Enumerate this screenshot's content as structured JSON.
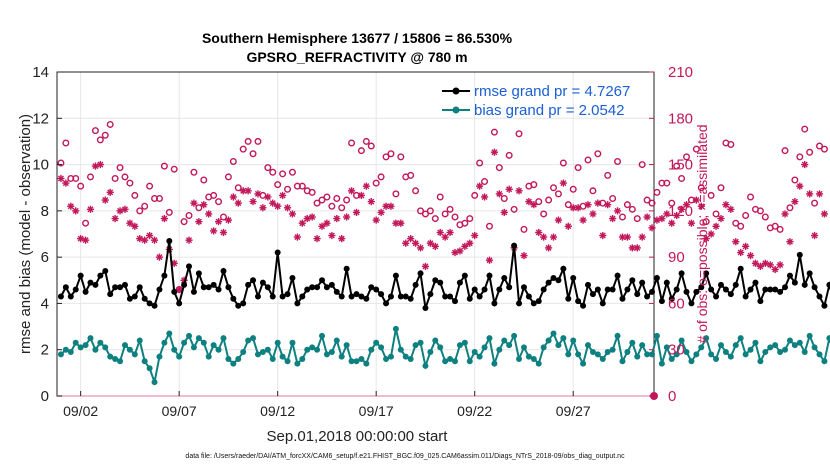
{
  "chart_data": {
    "type": "scatter",
    "title_line1": "Southern Hemisphere 13677 / 15806 = 86.530%",
    "title_line2": "GPSRO_REFRACTIVITY @ 780 m",
    "ylabel_left": "rmse and bias (model - observation)",
    "ylabel_right": "# of obs: o=possible; ×=assimilated",
    "xlabel": "Sep.01,2018 00:00:00 start",
    "footnote": "data file: /Users/raeder/DAI/ATM_forcXX/CAM6_setup/f.e21.FHIST_BGC.f09_025.CAM6assim.011/Diags_NTrS_2018-09/obs_diag_output.nc",
    "ylim_left": [
      0,
      14
    ],
    "ylim_right": [
      0,
      210
    ],
    "xlim": [
      0.8,
      31.1
    ],
    "yticks_left": [
      "0",
      "2",
      "4",
      "6",
      "8",
      "10",
      "12",
      "14"
    ],
    "yticks_right": [
      "0",
      "30",
      "60",
      "90",
      "120",
      "150",
      "180",
      "210"
    ],
    "xticks": [
      {
        "day": 2,
        "label": "09/02"
      },
      {
        "day": 7,
        "label": "09/07"
      },
      {
        "day": 12,
        "label": "09/12"
      },
      {
        "day": 17,
        "label": "09/17"
      },
      {
        "day": 22,
        "label": "09/22"
      },
      {
        "day": 27,
        "label": "09/27"
      }
    ],
    "legend": [
      {
        "label": "rmse grand pr = 4.7267",
        "color": "#000000"
      },
      {
        "label": "bias grand pr = 2.0542",
        "color": "#0f8080"
      }
    ],
    "colors": {
      "rmse": "#000000",
      "bias": "#0f8080",
      "obs": "#c2185b",
      "zero_line": "#e8a6bd"
    },
    "x_step_days": 0.25,
    "x_start_day": 1.0,
    "series": [
      {
        "name": "rmse",
        "axis": "left",
        "values": [
          4.3,
          4.7,
          4.3,
          4.6,
          5.2,
          4.5,
          4.9,
          4.8,
          5.2,
          5.4,
          4.4,
          4.7,
          4.7,
          4.8,
          4.2,
          4.3,
          4.7,
          4.2,
          4.0,
          3.9,
          4.6,
          5.2,
          6.7,
          4.5,
          4.0,
          4.8,
          5.6,
          4.5,
          5.3,
          4.7,
          4.7,
          4.8,
          4.6,
          5.4,
          4.7,
          4.2,
          3.9,
          4.0,
          4.8,
          5.0,
          4.3,
          4.9,
          4.7,
          4.3,
          6.2,
          4.3,
          4.4,
          5.1,
          4.0,
          4.3,
          4.6,
          4.7,
          4.7,
          5.0,
          4.7,
          4.8,
          4.5,
          4.3,
          5.5,
          4.3,
          4.4,
          4.3,
          4.2,
          4.7,
          4.6,
          4.4,
          4.0,
          4.3,
          5.2,
          4.3,
          4.3,
          4.2,
          4.8,
          5.3,
          3.8,
          4.4,
          5.0,
          4.9,
          4.3,
          4.3,
          4.1,
          4.9,
          5.2,
          4.2,
          4.6,
          4.3,
          4.6,
          5.2,
          4.0,
          4.6,
          5.1,
          4.7,
          6.5,
          4.0,
          4.7,
          4.3,
          4.0,
          4.1,
          4.6,
          4.9,
          5.1,
          5.0,
          5.5,
          4.2,
          5.1,
          4.1,
          3.9,
          4.8,
          4.4,
          4.6,
          4.0,
          4.6,
          4.6,
          5.2,
          4.2,
          4.6,
          5.0,
          4.4,
          4.9,
          4.3,
          4.5,
          5.1,
          4.1,
          4.9,
          4.2,
          4.6,
          5.3,
          4.5,
          4.0,
          4.5,
          4.7,
          5.3,
          4.6,
          4.3,
          4.8,
          4.6,
          4.4,
          4.8,
          5.5,
          4.3,
          4.6,
          4.9,
          4.1,
          4.6,
          4.6,
          4.6,
          4.5,
          4.7,
          5.2,
          4.9,
          6.1,
          4.8,
          5.3,
          4.7,
          4.3,
          3.9,
          4.8,
          4.1
        ]
      },
      {
        "name": "bias",
        "axis": "left",
        "values": [
          1.8,
          2.0,
          1.9,
          2.3,
          2.1,
          2.2,
          2.5,
          2.0,
          2.3,
          2.1,
          1.7,
          1.6,
          1.5,
          2.2,
          2.0,
          1.8,
          2.4,
          1.5,
          1.2,
          0.6,
          1.7,
          2.3,
          2.7,
          2.0,
          1.7,
          2.3,
          2.6,
          2.1,
          2.5,
          2.3,
          1.7,
          2.2,
          2.0,
          2.5,
          1.6,
          1.4,
          1.6,
          1.9,
          2.4,
          2.5,
          1.8,
          1.9,
          2.0,
          1.6,
          2.3,
          1.7,
          1.5,
          2.3,
          1.4,
          1.6,
          2.0,
          2.1,
          2.0,
          2.6,
          1.8,
          1.9,
          2.4,
          1.7,
          2.2,
          1.5,
          1.5,
          1.6,
          1.4,
          2.0,
          2.3,
          2.1,
          1.6,
          1.7,
          2.9,
          2.0,
          1.7,
          1.6,
          2.2,
          2.3,
          1.3,
          1.9,
          2.4,
          2.1,
          1.5,
          1.6,
          1.5,
          2.2,
          2.3,
          1.5,
          1.9,
          1.7,
          2.1,
          2.5,
          1.4,
          2.0,
          2.4,
          2.2,
          2.6,
          1.6,
          2.1,
          1.7,
          1.6,
          1.4,
          2.1,
          2.4,
          2.7,
          2.2,
          2.5,
          1.8,
          2.4,
          1.8,
          1.4,
          2.2,
          1.9,
          1.8,
          1.6,
          1.9,
          2.0,
          2.6,
          1.5,
          1.9,
          2.3,
          1.7,
          2.2,
          1.8,
          1.8,
          2.6,
          1.4,
          2.1,
          1.6,
          1.8,
          2.4,
          1.9,
          1.5,
          1.8,
          2.1,
          2.5,
          1.8,
          1.6,
          2.2,
          1.9,
          1.7,
          2.2,
          2.5,
          1.8,
          2.0,
          2.3,
          1.5,
          1.9,
          2.1,
          2.2,
          1.9,
          2.0,
          2.4,
          2.2,
          2.3,
          1.9,
          2.6,
          2.1,
          1.8,
          1.5,
          2.5,
          1.8
        ]
      },
      {
        "name": "possible",
        "axis": "right",
        "marker": "o",
        "values": [
          151,
          164,
          141,
          141,
          136,
          112,
          142,
          172,
          166,
          169,
          176,
          141,
          148,
          142,
          138,
          130,
          120,
          123,
          136,
          128,
          128,
          149,
          119,
          147,
          69,
          113,
          117,
          145,
          122,
          140,
          129,
          130,
          126,
          116,
          142,
          152,
          135,
          160,
          165,
          157,
          165,
          130,
          148,
          145,
          137,
          144,
          134,
          145,
          136,
          136,
          133,
          132,
          125,
          127,
          129,
          123,
          128,
          122,
          127,
          164,
          130,
          159,
          165,
          162,
          138,
          142,
          155,
          157,
          131,
          155,
          142,
          143,
          133,
          120,
          118,
          120,
          115,
          129,
          118,
          121,
          116,
          111,
          112,
          115,
          130,
          151,
          139,
          110,
          171,
          148,
          128,
          156,
          121,
          170,
          108,
          136,
          137,
          126,
          118,
          127,
          135,
          131,
          151,
          124,
          134,
          148,
          123,
          153,
          133,
          157,
          125,
          143,
          128,
          152,
          116,
          124,
          121,
          115,
          150,
          127,
          125,
          132,
          138,
          138,
          125,
          149,
          141,
          155,
          127,
          160,
          135,
          113,
          130,
          118,
          135,
          164,
          163,
          112,
          110,
          117,
          129,
          121,
          120,
          116,
          109,
          110,
          108,
          159,
          122,
          140,
          155,
          173,
          158,
          125,
          162,
          160
        ]
      },
      {
        "name": "assimilated",
        "axis": "right",
        "marker": "x",
        "values": [
          141,
          138,
          123,
          120,
          102,
          101,
          121,
          149,
          150,
          127,
          132,
          115,
          120,
          121,
          112,
          110,
          102,
          101,
          104,
          101,
          90,
          115,
          95,
          86,
          69,
          75,
          101,
          125,
          113,
          124,
          118,
          107,
          113,
          106,
          114,
          129,
          125,
          133,
          133,
          126,
          131,
          122,
          129,
          125,
          123,
          130,
          122,
          118,
          103,
          112,
          115,
          116,
          102,
          110,
          112,
          104,
          115,
          102,
          116,
          133,
          119,
          130,
          136,
          126,
          114,
          119,
          123,
          123,
          112,
          112,
          99,
          102,
          99,
          96,
          84,
          99,
          97,
          106,
          103,
          106,
          93,
          94,
          97,
          99,
          104,
          136,
          129,
          88,
          158,
          131,
          119,
          134,
          96,
          133,
          91,
          126,
          124,
          106,
          103,
          96,
          103,
          114,
          138,
          110,
          122,
          122,
          114,
          124,
          118,
          125,
          104,
          124,
          115,
          120,
          103,
          103,
          96,
          96,
          103,
          116,
          109,
          114,
          115,
          118,
          112,
          117,
          121,
          124,
          112,
          127,
          123,
          102,
          105,
          110,
          115,
          124,
          121,
          100,
          93,
          97,
          91,
          86,
          84,
          86,
          85,
          82,
          85,
          118,
          100,
          126,
          136,
          150,
          131,
          104,
          131,
          118
        ]
      }
    ]
  }
}
